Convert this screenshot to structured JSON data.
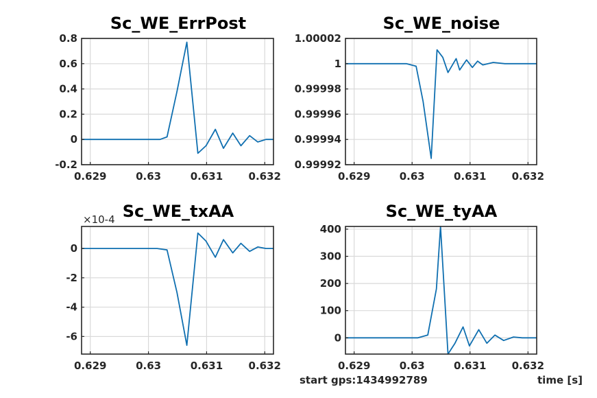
{
  "footer": {
    "left": "start gps:1434992789",
    "right": "time [s]"
  },
  "colors": {
    "series": "#0f6fb0",
    "grid": "#d9d9d9",
    "axis": "#262626"
  },
  "chart_data": [
    {
      "type": "line",
      "title": "Sc_WE_ErrPost",
      "xlabel": "",
      "ylabel": "",
      "grid": true,
      "xlim": [
        0.62885,
        0.63215
      ],
      "ylim": [
        -0.2,
        0.8
      ],
      "x_ticks": [
        0.629,
        0.63,
        0.631,
        0.632
      ],
      "x_tick_labels": [
        "0.629",
        "0.63",
        "0.631",
        "0.632"
      ],
      "y_ticks": [
        -0.2,
        0,
        0.2,
        0.4,
        0.6,
        0.8
      ],
      "y_tick_labels": [
        "-0.2",
        "0",
        "0.2",
        "0.4",
        "0.6",
        "0.8"
      ],
      "multiplier": "",
      "x": [
        0.62885,
        0.63,
        0.6302,
        0.63032,
        0.63049,
        0.63066,
        0.63085,
        0.63099,
        0.63115,
        0.63129,
        0.63145,
        0.63159,
        0.63174,
        0.63188,
        0.63202,
        0.63215
      ],
      "y": [
        0,
        0,
        0,
        0.02,
        0.38,
        0.77,
        -0.11,
        -0.05,
        0.08,
        -0.07,
        0.05,
        -0.05,
        0.03,
        -0.02,
        0,
        0
      ]
    },
    {
      "type": "line",
      "title": "Sc_WE_noise",
      "xlabel": "",
      "ylabel": "",
      "grid": true,
      "xlim": [
        0.62885,
        0.63215
      ],
      "ylim": [
        0.99992,
        1.00002
      ],
      "x_ticks": [
        0.629,
        0.63,
        0.631,
        0.632
      ],
      "x_tick_labels": [
        "0.629",
        "0.63",
        "0.631",
        "0.632"
      ],
      "y_ticks": [
        0.99992,
        0.99994,
        0.99996,
        0.99998,
        1,
        1.00002
      ],
      "y_tick_labels": [
        "0.99992",
        "0.99994",
        "0.99996",
        "0.99998",
        "1",
        "1.00002"
      ],
      "multiplier": "",
      "x": [
        0.62885,
        0.6299,
        0.63007,
        0.63019,
        0.63033,
        0.63043,
        0.63053,
        0.63062,
        0.63076,
        0.63082,
        0.63094,
        0.63104,
        0.63113,
        0.63122,
        0.6314,
        0.6316,
        0.6318,
        0.63215
      ],
      "y": [
        1,
        1,
        0.999998,
        0.99997,
        0.999925,
        1.000011,
        1.000005,
        0.999993,
        1.000004,
        0.999995,
        1.000003,
        0.999997,
        1.000002,
        0.999999,
        1.000001,
        1,
        1,
        1
      ]
    },
    {
      "type": "line",
      "title": "Sc_WE_txAA",
      "xlabel": "",
      "ylabel": "",
      "grid": true,
      "xlim": [
        0.62885,
        0.63215
      ],
      "ylim": [
        -7.2,
        1.5
      ],
      "x_ticks": [
        0.629,
        0.63,
        0.631,
        0.632
      ],
      "x_tick_labels": [
        "0.629",
        "0.63",
        "0.631",
        "0.632"
      ],
      "y_ticks": [
        -6,
        -4,
        -2,
        0
      ],
      "y_tick_labels": [
        "-6",
        "-4",
        "-2",
        "0"
      ],
      "multiplier": "×10-4",
      "x": [
        0.62885,
        0.6299,
        0.63015,
        0.63032,
        0.63049,
        0.63066,
        0.63085,
        0.63099,
        0.63115,
        0.63129,
        0.63145,
        0.63159,
        0.63174,
        0.63188,
        0.63202,
        0.63215
      ],
      "y": [
        0,
        0,
        0,
        -0.1,
        -3.0,
        -6.6,
        1.05,
        0.5,
        -0.6,
        0.6,
        -0.3,
        0.35,
        -0.2,
        0.1,
        0,
        0
      ]
    },
    {
      "type": "line",
      "title": "Sc_WE_tyAA",
      "xlabel": "",
      "ylabel": "",
      "grid": true,
      "xlim": [
        0.62885,
        0.63215
      ],
      "ylim": [
        -60,
        410
      ],
      "x_ticks": [
        0.629,
        0.63,
        0.631,
        0.632
      ],
      "x_tick_labels": [
        "0.629",
        "0.63",
        "0.631",
        "0.632"
      ],
      "y_ticks": [
        0,
        100,
        200,
        300,
        400
      ],
      "y_tick_labels": [
        "0",
        "100",
        "200",
        "300",
        "400"
      ],
      "multiplier": "",
      "x": [
        0.62885,
        0.6301,
        0.63027,
        0.63042,
        0.63049,
        0.63062,
        0.63074,
        0.63088,
        0.63099,
        0.63115,
        0.63129,
        0.63143,
        0.63158,
        0.63175,
        0.6319,
        0.63215
      ],
      "y": [
        0,
        0,
        10,
        180,
        410,
        -60,
        -20,
        40,
        -30,
        30,
        -20,
        10,
        -10,
        3,
        0,
        0
      ]
    }
  ]
}
